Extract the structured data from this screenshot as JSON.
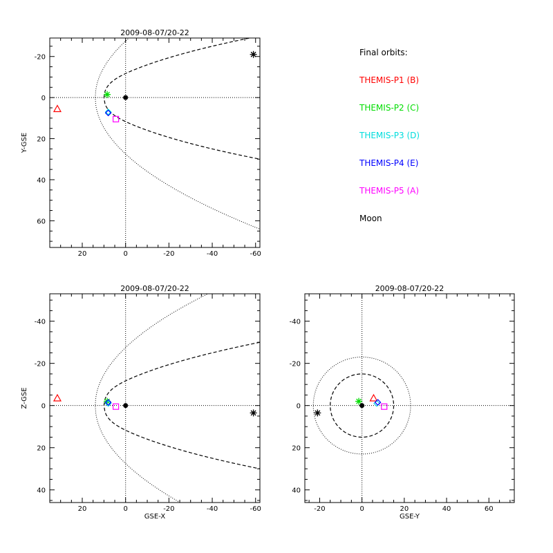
{
  "chart_data": [
    {
      "type": "scatter",
      "panel": "xy",
      "title": "2009-08-07/20-22",
      "xlabel": "",
      "ylabel": "Y-GSE",
      "xlim": [
        35,
        -62
      ],
      "ylim": [
        -29,
        73
      ],
      "x_ticks": [
        20,
        0,
        -20,
        -40,
        -60
      ],
      "y_ticks": [
        -20,
        0,
        20,
        40,
        60
      ],
      "series": [
        {
          "name": "THEMIS-P1 (B)",
          "color": "#ff0000",
          "marker": "triangle",
          "x": [
            31.5
          ],
          "y": [
            5.5
          ]
        },
        {
          "name": "THEMIS-P2 (C)",
          "color": "#00dd00",
          "marker": "asterisk",
          "x": [
            8.5
          ],
          "y": [
            -1.5
          ]
        },
        {
          "name": "THEMIS-P3 (D)",
          "color": "#00dddd",
          "marker": "diamond",
          "x": [
            8.0
          ],
          "y": [
            7.0
          ]
        },
        {
          "name": "THEMIS-P4 (E)",
          "color": "#0000ff",
          "marker": "diamond",
          "x": [
            8.0
          ],
          "y": [
            7.5
          ]
        },
        {
          "name": "THEMIS-P5 (A)",
          "color": "#ff00ff",
          "marker": "square",
          "x": [
            4.5
          ],
          "y": [
            10.5
          ]
        },
        {
          "name": "Moon",
          "color": "#000000",
          "marker": "asterisk",
          "x": [
            -59
          ],
          "y": [
            -21
          ]
        },
        {
          "name": "",
          "color": "#000000",
          "marker": "dot",
          "x": [
            0
          ],
          "y": [
            0
          ]
        }
      ],
      "boundaries": {
        "bow_shock": {
          "style": "dotted",
          "x_nose": 14,
          "semi_latus": 27
        },
        "magnetopause": {
          "style": "dashed",
          "x_nose": 10,
          "y_flank_at_x_minus_60": 30
        }
      }
    },
    {
      "type": "scatter",
      "panel": "xz",
      "title": "2009-08-07/20-22",
      "xlabel": "GSE-X",
      "ylabel": "Z-GSE",
      "xlim": [
        35,
        -62
      ],
      "ylim": [
        -53,
        46
      ],
      "x_ticks": [
        20,
        0,
        -20,
        -40,
        -60
      ],
      "y_ticks": [
        -40,
        -20,
        0,
        20,
        40
      ],
      "series": [
        {
          "name": "THEMIS-P1 (B)",
          "color": "#ff0000",
          "marker": "triangle",
          "x": [
            31.5
          ],
          "y": [
            -3.5
          ]
        },
        {
          "name": "THEMIS-P2 (C)",
          "color": "#00dd00",
          "marker": "asterisk",
          "x": [
            8.5
          ],
          "y": [
            -2.0
          ]
        },
        {
          "name": "THEMIS-P3 (D)",
          "color": "#00dddd",
          "marker": "diamond",
          "x": [
            8.0
          ],
          "y": [
            -1.0
          ]
        },
        {
          "name": "THEMIS-P4 (E)",
          "color": "#0000ff",
          "marker": "diamond",
          "x": [
            8.0
          ],
          "y": [
            -1.5
          ]
        },
        {
          "name": "THEMIS-P5 (A)",
          "color": "#ff00ff",
          "marker": "square",
          "x": [
            4.5
          ],
          "y": [
            0.5
          ]
        },
        {
          "name": "Moon",
          "color": "#000000",
          "marker": "asterisk",
          "x": [
            -59
          ],
          "y": [
            3.5
          ]
        },
        {
          "name": "",
          "color": "#000000",
          "marker": "dot",
          "x": [
            0
          ],
          "y": [
            0
          ]
        }
      ]
    },
    {
      "type": "scatter",
      "panel": "yz",
      "title": "2009-08-07/20-22",
      "xlabel": "GSE-Y",
      "ylabel": "",
      "xlim": [
        -27,
        72
      ],
      "ylim": [
        -53,
        46
      ],
      "x_ticks": [
        -20,
        0,
        20,
        40,
        60
      ],
      "y_ticks": [
        -40,
        -20,
        0,
        20,
        40
      ],
      "series": [
        {
          "name": "THEMIS-P1 (B)",
          "color": "#ff0000",
          "marker": "triangle",
          "x": [
            5.5
          ],
          "y": [
            -3.5
          ]
        },
        {
          "name": "THEMIS-P2 (C)",
          "color": "#00dd00",
          "marker": "asterisk",
          "x": [
            -1.5
          ],
          "y": [
            -2.0
          ]
        },
        {
          "name": "THEMIS-P3 (D)",
          "color": "#00dddd",
          "marker": "diamond",
          "x": [
            7.0
          ],
          "y": [
            -1.0
          ]
        },
        {
          "name": "THEMIS-P4 (E)",
          "color": "#0000ff",
          "marker": "diamond",
          "x": [
            7.5
          ],
          "y": [
            -1.5
          ]
        },
        {
          "name": "THEMIS-P5 (A)",
          "color": "#ff00ff",
          "marker": "square",
          "x": [
            10.5
          ],
          "y": [
            0.5
          ]
        },
        {
          "name": "Moon",
          "color": "#000000",
          "marker": "asterisk",
          "x": [
            -21
          ],
          "y": [
            3.5
          ]
        },
        {
          "name": "",
          "color": "#000000",
          "marker": "dot",
          "x": [
            0
          ],
          "y": [
            0
          ]
        }
      ],
      "circles": [
        {
          "style": "dotted",
          "radius": 23
        },
        {
          "style": "dashed",
          "radius": 15
        }
      ]
    }
  ],
  "legend": {
    "header": "Final orbits:",
    "items": [
      {
        "label": "THEMIS-P1 (B)",
        "color": "#ff0000"
      },
      {
        "label": "THEMIS-P2 (C)",
        "color": "#00dd00"
      },
      {
        "label": "THEMIS-P3 (D)",
        "color": "#00dddd"
      },
      {
        "label": "THEMIS-P4 (E)",
        "color": "#0000ff"
      },
      {
        "label": "THEMIS-P5 (A)",
        "color": "#ff00ff"
      },
      {
        "label": "Moon",
        "color": "#000000"
      }
    ]
  }
}
